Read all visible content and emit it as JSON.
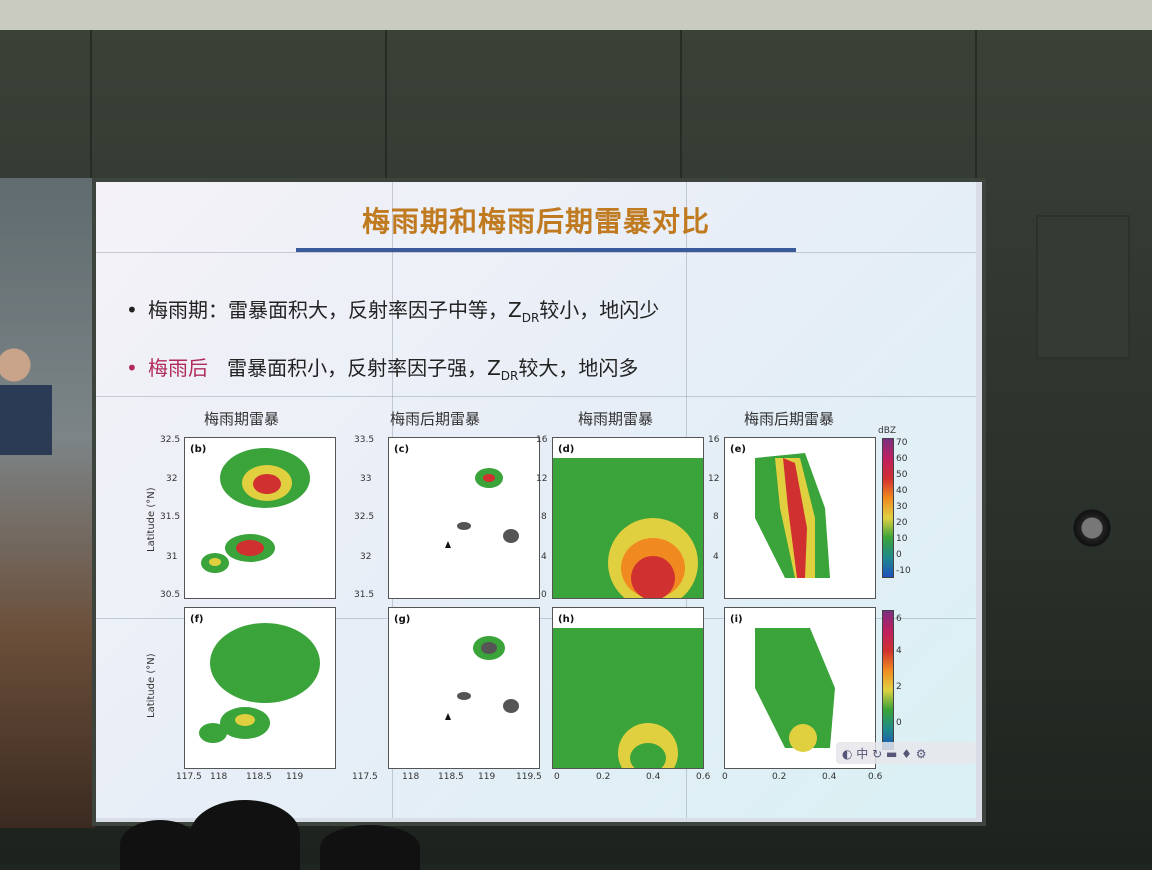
{
  "slide": {
    "title": "梅雨期和梅雨后期雷暴对比",
    "bullets": [
      {
        "marker": "•",
        "head": "梅雨期：",
        "text_a": "雷暴面积大，反射率因子中等，Z",
        "sub": "DR",
        "text_b": "较小，地闪少"
      },
      {
        "marker": "•",
        "head": "梅雨后",
        "text_a": "雷暴面积小，反射率因子强，Z",
        "sub": "DR",
        "text_b": "较大，地闪多"
      }
    ],
    "panel_titles": [
      "梅雨期雷暴",
      "梅雨后期雷暴",
      "梅雨期雷暴",
      "梅雨后期雷暴"
    ],
    "panel_labels": [
      "(b)",
      "(c)",
      "(d)",
      "(e)",
      "(f)",
      "(g)",
      "(h)",
      "(i)"
    ],
    "y_axis_label": "Latitude (°N)",
    "lat_ticks_b": [
      "32.5",
      "32",
      "31.5",
      "31",
      "30.5"
    ],
    "lat_ticks_c": [
      "33.5",
      "33",
      "32.5",
      "32",
      "31.5"
    ],
    "height_ticks": [
      "16",
      "12",
      "8",
      "4",
      "0"
    ],
    "lon_ticks_left": [
      "117.5",
      "118",
      "118.5",
      "119"
    ],
    "lon_ticks_mid": [
      "117.5",
      "118",
      "118.5",
      "119",
      "119.5"
    ],
    "dist_ticks": [
      "0",
      "0.2",
      "0.4",
      "0.6"
    ],
    "cbar_ticks_top": [
      "70",
      "60",
      "50",
      "40",
      "30",
      "20",
      "10",
      "0",
      "-10"
    ],
    "cbar_ticks_bottom": [
      "6",
      "4",
      "2",
      "0"
    ],
    "cbar_unit": "dBZ",
    "toolbar_icons": "◐ 中 ↻ ▬ ♦ ⚙"
  }
}
